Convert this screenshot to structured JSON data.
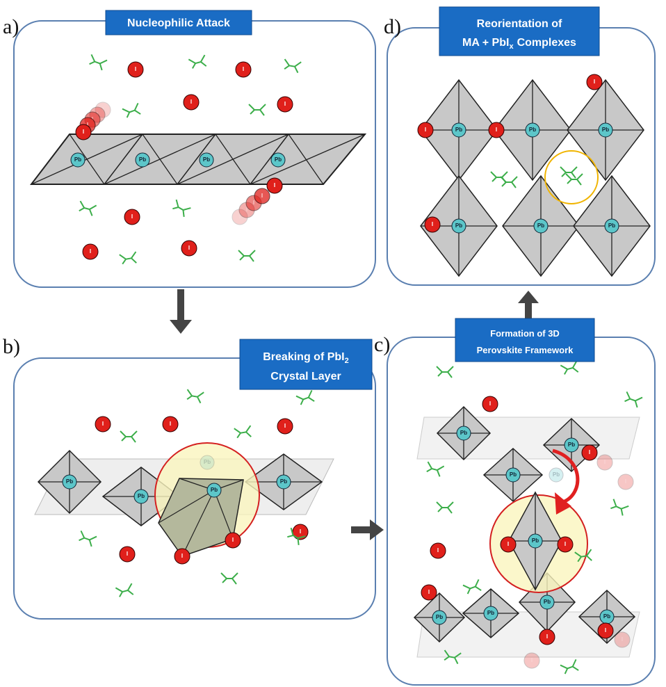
{
  "panels": {
    "a": {
      "label": "a)",
      "title": [
        "Nucleophilic Attack"
      ]
    },
    "b": {
      "label": "b)",
      "title": [
        "Breaking of PbI",
        "2",
        "Crystal Layer"
      ]
    },
    "c": {
      "label": "c)",
      "title": [
        "Formation of 3D",
        "Perovskite Framework"
      ]
    },
    "d": {
      "label": "d)",
      "title": [
        "Reorientation of",
        "MA + PbI",
        "x",
        "Complexes"
      ]
    }
  },
  "atoms": {
    "lead": "Pb",
    "iodine": "I"
  }
}
